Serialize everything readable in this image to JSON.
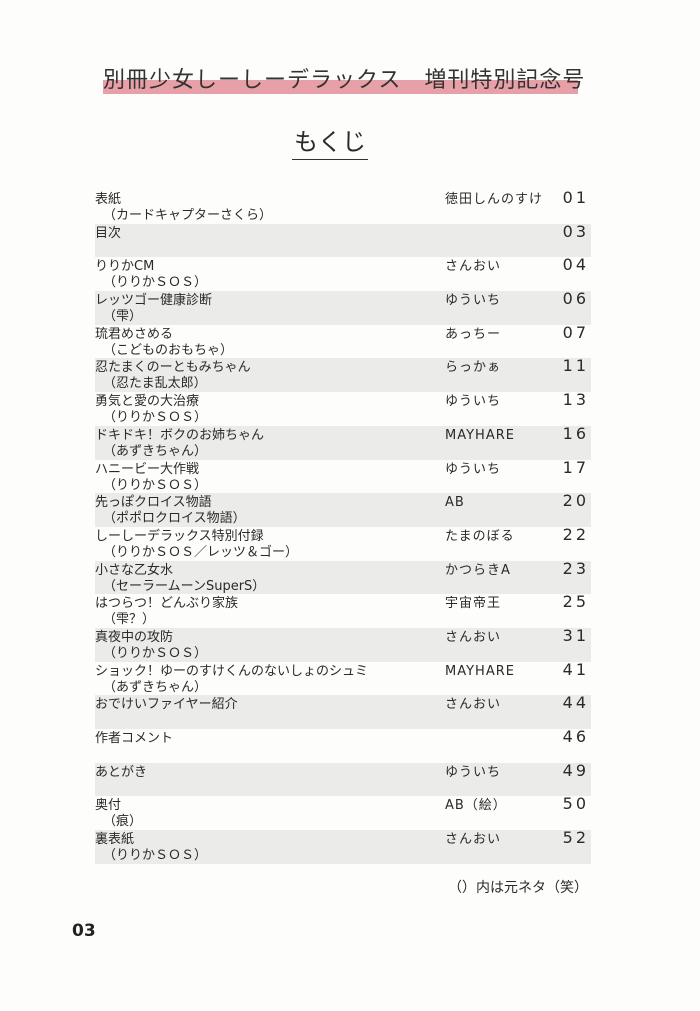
{
  "header": {
    "title": "別冊少女しーしーデラックス　増刊特別記念号",
    "accent_color": "#e8a0a8"
  },
  "toc_heading": "もくじ",
  "entries": [
    {
      "title": "表紙",
      "origin": "（カードキャプターさくら）",
      "author": "徳田しんのすけ",
      "page": "01"
    },
    {
      "title": "目次",
      "origin": "",
      "author": "",
      "page": "03"
    },
    {
      "title": "りりかCM",
      "origin": "（りりかＳＯＳ）",
      "author": "さんおい",
      "page": "04"
    },
    {
      "title": "レッツゴー健康診断",
      "origin": "（雫）",
      "author": "ゆういち",
      "page": "06"
    },
    {
      "title": "琉君めさめる",
      "origin": "（こどものおもちゃ）",
      "author": "あっちー",
      "page": "07"
    },
    {
      "title": "忍たまくのーともみちゃん",
      "origin": "（忍たま乱太郎）",
      "author": "らっかぁ",
      "page": "11"
    },
    {
      "title": "勇気と愛の大治療",
      "origin": "（りりかＳＯＳ）",
      "author": "ゆういち",
      "page": "13"
    },
    {
      "title": "ドキドキ！ボクのお姉ちゃん",
      "origin": "（あずきちゃん）",
      "author": "MAYHARE",
      "page": "16"
    },
    {
      "title": "ハニービー大作戦",
      "origin": "（りりかＳＯＳ）",
      "author": "ゆういち",
      "page": "17"
    },
    {
      "title": "先っぽクロイス物語",
      "origin": "（ポポロクロイス物語）",
      "author": "AB",
      "page": "20"
    },
    {
      "title": "しーしーデラックス特別付録",
      "origin": "（りりかＳＯＳ／レッツ＆ゴー）",
      "author": "たまのぼる",
      "page": "22"
    },
    {
      "title": "小さな乙女水",
      "origin": "（セーラームーンSuperS）",
      "author": "かつらきA",
      "page": "23"
    },
    {
      "title": "はつらつ！どんぶり家族",
      "origin": "（雫？）",
      "author": "宇宙帝王",
      "page": "25"
    },
    {
      "title": "真夜中の攻防",
      "origin": "（りりかＳＯＳ）",
      "author": "さんおい",
      "page": "31"
    },
    {
      "title": "ショック！ゆーのすけくんのないしょのシュミ",
      "origin": "（あずきちゃん）",
      "author": "MAYHARE",
      "page": "41"
    },
    {
      "title": "おでけいファイヤー紹介",
      "origin": "",
      "author": "さんおい",
      "page": "44"
    },
    {
      "title": "作者コメント",
      "origin": "",
      "author": "",
      "page": "46"
    },
    {
      "title": "あとがき",
      "origin": "",
      "author": "ゆういち",
      "page": "49"
    },
    {
      "title": "奥付",
      "origin": "（痕）",
      "author": "AB（絵）",
      "page": "50"
    },
    {
      "title": "裏表紙",
      "origin": "（りりかＳＯＳ）",
      "author": "さんおい",
      "page": "52"
    }
  ],
  "footnote": "（）内は元ネタ（笑）",
  "page_number": "03"
}
